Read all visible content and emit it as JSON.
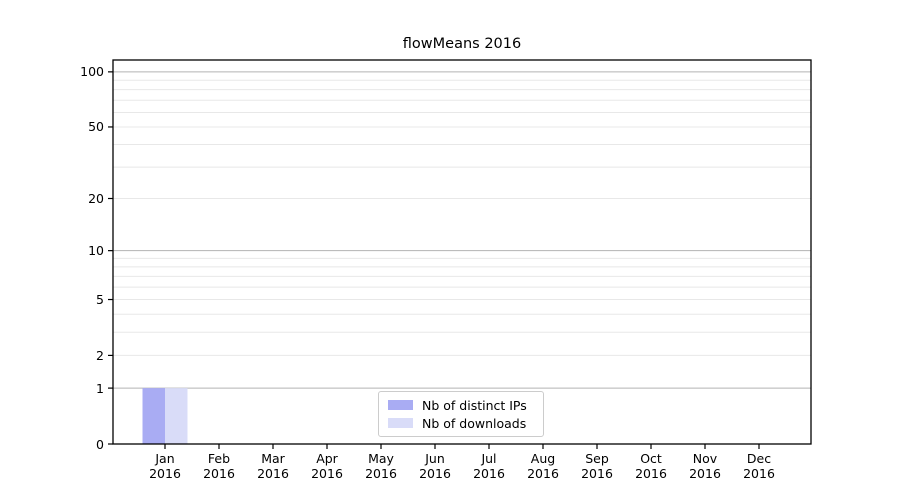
{
  "chart_data": {
    "type": "bar",
    "title": "flowMeans 2016",
    "categories": [
      "Jan",
      "Feb",
      "Mar",
      "Apr",
      "May",
      "Jun",
      "Jul",
      "Aug",
      "Sep",
      "Oct",
      "Nov",
      "Dec"
    ],
    "x_tick_year": "2016",
    "series": [
      {
        "name": "Nb of distinct IPs",
        "color": "#a9acf3",
        "values": [
          1,
          0,
          0,
          0,
          0,
          0,
          0,
          0,
          0,
          0,
          0,
          0
        ]
      },
      {
        "name": "Nb of downloads",
        "color": "#d9dcf8",
        "values": [
          1,
          0,
          0,
          0,
          0,
          0,
          0,
          0,
          0,
          0,
          0,
          0
        ]
      }
    ],
    "xlabel": "",
    "ylabel": "",
    "y_scale": "log1p",
    "ylim": [
      0,
      116
    ],
    "y_ticks": [
      0,
      1,
      2,
      5,
      10,
      20,
      50,
      100
    ],
    "grid_major": [
      1,
      10,
      100
    ],
    "grid_minor": [
      2,
      3,
      4,
      5,
      6,
      7,
      8,
      9,
      20,
      30,
      40,
      50,
      60,
      70,
      80,
      90
    ],
    "grid": "on",
    "legend_position": "lower center"
  },
  "colors": {
    "grid_major": "#b3b3b3",
    "grid_minor": "#e8e8e8",
    "spine": "#000000",
    "tick": "#000000",
    "background": "#ffffff",
    "legend_border": "#cccccc"
  }
}
